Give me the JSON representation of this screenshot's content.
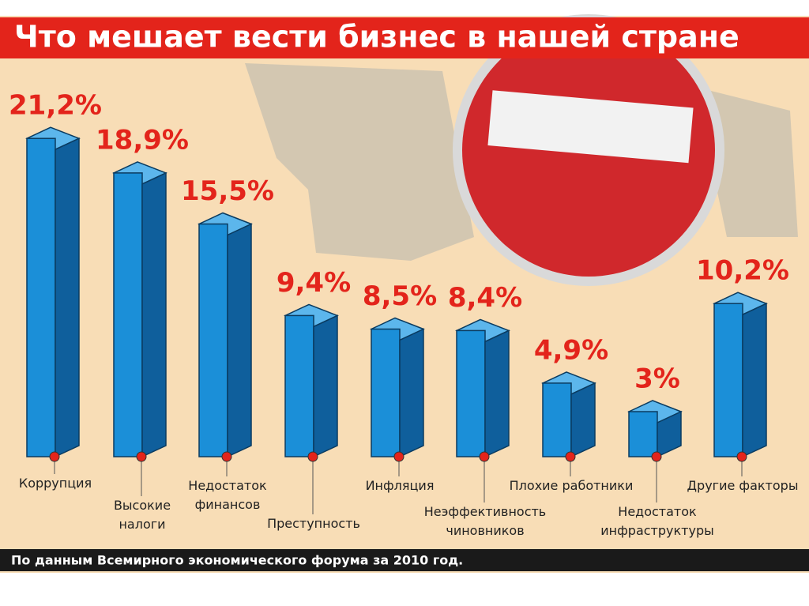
{
  "chart_data": {
    "type": "bar3d",
    "title": "Что мешает вести бизнес в нашей стране",
    "source": "По данным Всемирного экономического форума за 2010 год.",
    "categories": [
      "Коррупция",
      "Высокие\nналоги",
      "Недостаток\nфинансов",
      "Преступность",
      "Инфляция",
      "Неэффективность\nчиновников",
      "Плохие работники",
      "Недостаток\nинфраструктуры",
      "Другие факторы"
    ],
    "values": [
      21.2,
      18.9,
      15.5,
      9.4,
      8.5,
      8.4,
      4.9,
      3,
      10.2
    ],
    "value_labels": [
      "21,2%",
      "18,9%",
      "15,5%",
      "9,4%",
      "8,5%",
      "8,4%",
      "4,9%",
      "3%",
      "10,2%"
    ],
    "color": "#1b8fd8"
  }
}
